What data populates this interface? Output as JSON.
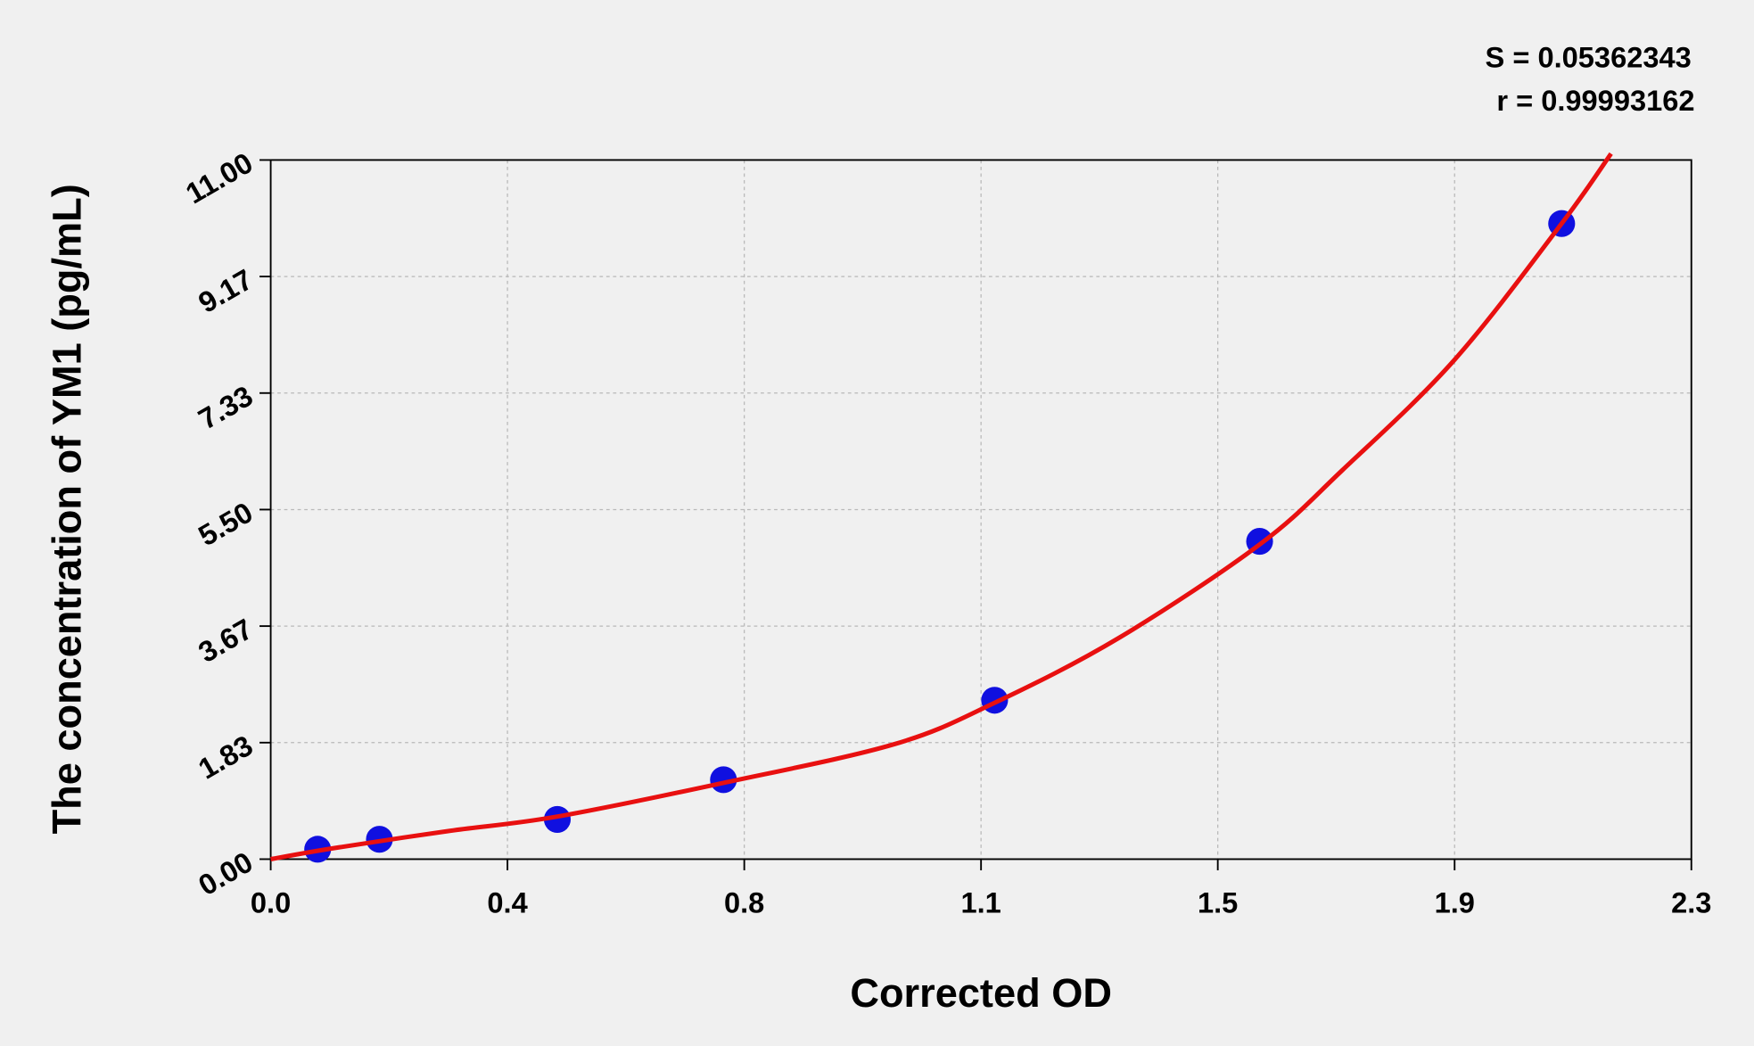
{
  "chart_data": {
    "type": "scatter",
    "stats": [
      "S = 0.05362343",
      "r = 0.99993162"
    ],
    "x_label": "Corrected OD",
    "y_label": "The concentration of YM1 (pg/mL)",
    "xlim": [
      0,
      2.3
    ],
    "ylim": [
      0,
      11
    ],
    "xticks": [
      {
        "value": 0,
        "label": "0.0"
      },
      {
        "value": 0.3833,
        "label": "0.4"
      },
      {
        "value": 0.7667,
        "label": "0.8"
      },
      {
        "value": 1.15,
        "label": "1.1"
      },
      {
        "value": 1.5333,
        "label": "1.5"
      },
      {
        "value": 1.9167,
        "label": "1.9"
      },
      {
        "value": 2.3,
        "label": "2.3"
      }
    ],
    "yticks": [
      {
        "value": 0,
        "label": "0.00"
      },
      {
        "value": 1.8333,
        "label": "1.83"
      },
      {
        "value": 3.6667,
        "label": "3.67"
      },
      {
        "value": 5.5,
        "label": "5.50"
      },
      {
        "value": 7.3333,
        "label": "7.33"
      },
      {
        "value": 9.1667,
        "label": "9.17"
      },
      {
        "value": 11,
        "label": "11.00"
      }
    ],
    "grid": true,
    "series": [
      {
        "color": "#1010e0",
        "x": [
          0.076,
          0.176,
          0.464,
          0.733,
          1.172,
          1.601,
          2.09
        ],
        "values": [
          0.156,
          0.3125,
          0.625,
          1.25,
          2.5,
          5,
          10
        ]
      }
    ],
    "curve": {
      "color": "#e81010",
      "x": [
        0,
        0.1,
        0.286,
        0.464,
        0.733,
        1.01,
        1.172,
        1.373,
        1.601,
        1.735,
        1.916,
        2.09,
        2.17
      ],
      "values": [
        0,
        0.17,
        0.44,
        0.67,
        1.2,
        1.81,
        2.46,
        3.48,
        4.95,
        6.12,
        7.85,
        10,
        11.1
      ]
    }
  }
}
